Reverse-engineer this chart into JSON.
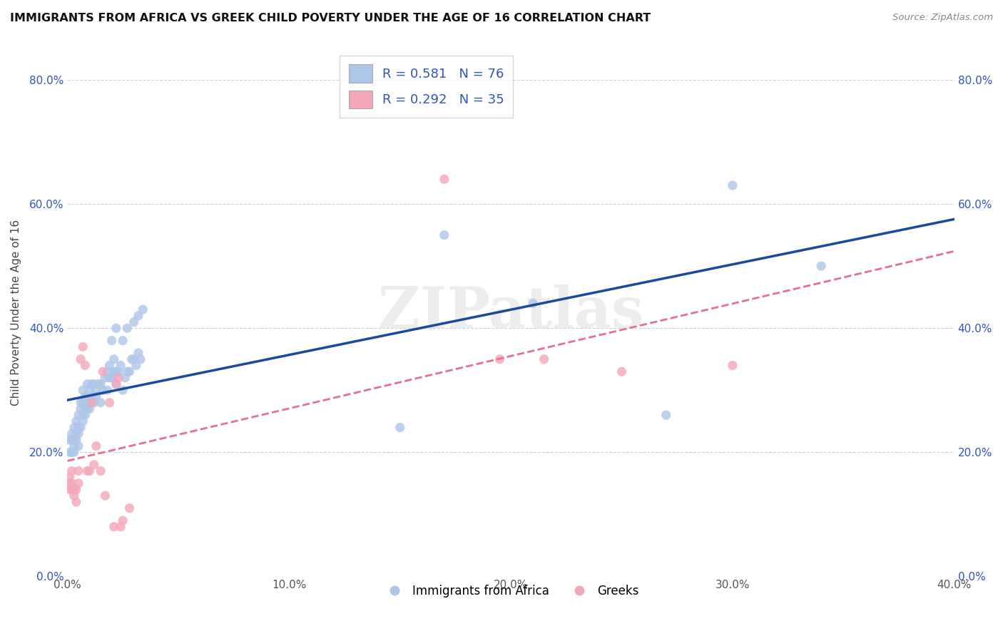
{
  "title": "IMMIGRANTS FROM AFRICA VS GREEK CHILD POVERTY UNDER THE AGE OF 16 CORRELATION CHART",
  "source": "Source: ZipAtlas.com",
  "xlabel": "",
  "ylabel": "Child Poverty Under the Age of 16",
  "xlim": [
    0.0,
    0.4
  ],
  "ylim": [
    0.0,
    0.85
  ],
  "blue_R": 0.581,
  "blue_N": 76,
  "pink_R": 0.292,
  "pink_N": 35,
  "blue_color": "#aec6e8",
  "pink_color": "#f4a7b9",
  "blue_line_color": "#1a4a9c",
  "pink_line_color": "#e8708a",
  "legend_text_color": "#3355bb",
  "watermark": "ZIPatlas",
  "blue_scatter_x": [
    0.001,
    0.001,
    0.002,
    0.002,
    0.002,
    0.003,
    0.003,
    0.003,
    0.003,
    0.004,
    0.004,
    0.004,
    0.005,
    0.005,
    0.005,
    0.005,
    0.006,
    0.006,
    0.006,
    0.007,
    0.007,
    0.007,
    0.007,
    0.008,
    0.008,
    0.008,
    0.009,
    0.009,
    0.009,
    0.01,
    0.01,
    0.01,
    0.011,
    0.011,
    0.012,
    0.012,
    0.013,
    0.013,
    0.014,
    0.015,
    0.015,
    0.016,
    0.017,
    0.018,
    0.018,
    0.019,
    0.019,
    0.02,
    0.021,
    0.021,
    0.022,
    0.022,
    0.023,
    0.024,
    0.025,
    0.026,
    0.027,
    0.028,
    0.029,
    0.03,
    0.031,
    0.032,
    0.033,
    0.02,
    0.022,
    0.025,
    0.027,
    0.03,
    0.032,
    0.034,
    0.15,
    0.17,
    0.21,
    0.27,
    0.3,
    0.34
  ],
  "blue_scatter_y": [
    0.22,
    0.2,
    0.23,
    0.2,
    0.22,
    0.21,
    0.24,
    0.2,
    0.22,
    0.22,
    0.25,
    0.23,
    0.21,
    0.24,
    0.23,
    0.26,
    0.24,
    0.27,
    0.28,
    0.25,
    0.28,
    0.26,
    0.3,
    0.27,
    0.29,
    0.26,
    0.29,
    0.27,
    0.31,
    0.27,
    0.3,
    0.28,
    0.29,
    0.31,
    0.28,
    0.31,
    0.29,
    0.3,
    0.31,
    0.28,
    0.31,
    0.3,
    0.32,
    0.3,
    0.33,
    0.32,
    0.34,
    0.32,
    0.33,
    0.35,
    0.31,
    0.33,
    0.33,
    0.34,
    0.3,
    0.32,
    0.33,
    0.33,
    0.35,
    0.35,
    0.34,
    0.36,
    0.35,
    0.38,
    0.4,
    0.38,
    0.4,
    0.41,
    0.42,
    0.43,
    0.24,
    0.55,
    0.44,
    0.26,
    0.63,
    0.5
  ],
  "pink_scatter_x": [
    0.001,
    0.001,
    0.001,
    0.002,
    0.002,
    0.002,
    0.003,
    0.003,
    0.004,
    0.004,
    0.005,
    0.005,
    0.006,
    0.007,
    0.008,
    0.009,
    0.01,
    0.011,
    0.012,
    0.013,
    0.015,
    0.016,
    0.017,
    0.019,
    0.021,
    0.022,
    0.023,
    0.024,
    0.025,
    0.028,
    0.17,
    0.195,
    0.215,
    0.25,
    0.3
  ],
  "pink_scatter_y": [
    0.15,
    0.14,
    0.16,
    0.14,
    0.15,
    0.17,
    0.13,
    0.14,
    0.14,
    0.12,
    0.15,
    0.17,
    0.35,
    0.37,
    0.34,
    0.17,
    0.17,
    0.28,
    0.18,
    0.21,
    0.17,
    0.33,
    0.13,
    0.28,
    0.08,
    0.31,
    0.32,
    0.08,
    0.09,
    0.11,
    0.64,
    0.35,
    0.35,
    0.33,
    0.34
  ],
  "ytick_labels": [
    "0.0%",
    "20.0%",
    "40.0%",
    "60.0%",
    "80.0%"
  ],
  "ytick_values": [
    0.0,
    0.2,
    0.4,
    0.6,
    0.8
  ],
  "xtick_labels": [
    "0.0%",
    "10.0%",
    "20.0%",
    "30.0%",
    "40.0%"
  ],
  "xtick_values": [
    0.0,
    0.1,
    0.2,
    0.3,
    0.4
  ],
  "grid_color": "#d0d0d0",
  "background_color": "#ffffff"
}
